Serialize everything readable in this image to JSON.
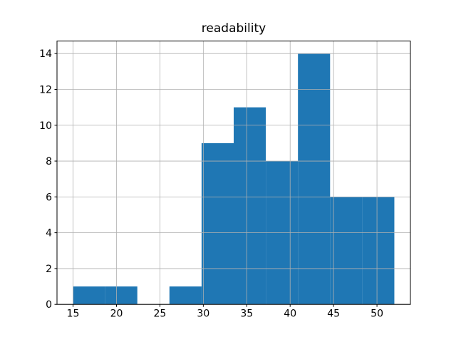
{
  "chart_data": {
    "type": "bar",
    "subtype": "histogram",
    "title": "readability",
    "xlabel": "",
    "ylabel": "",
    "bin_edges": [
      15.0,
      18.7,
      22.4,
      26.1,
      29.8,
      33.5,
      37.2,
      40.9,
      44.6,
      48.3,
      52.0
    ],
    "counts": [
      1,
      1,
      0,
      1,
      9,
      11,
      8,
      14,
      6,
      6
    ],
    "xticks": [
      15,
      20,
      25,
      30,
      35,
      40,
      45,
      50
    ],
    "yticks": [
      0,
      2,
      4,
      6,
      8,
      10,
      12,
      14
    ],
    "xlim": [
      13.15,
      53.85
    ],
    "ylim": [
      0,
      14.7
    ],
    "grid": true,
    "grid_above_bars": true,
    "legend": "none",
    "bar_color": "#1f77b4",
    "grid_color": "#b0b0b0",
    "spine_color": "#000000",
    "text_color": "#000000",
    "background": "#ffffff"
  }
}
